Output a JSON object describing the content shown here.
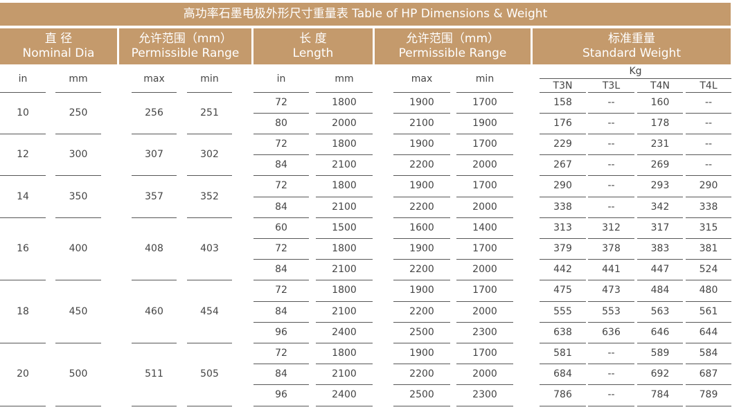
{
  "title": "高功率石墨电极外形尺寸重量表  Table of HP Dimensions & Weight",
  "headers": [
    {
      "cn": "直  径",
      "en": "Nominal Dia"
    },
    {
      "cn": "允许范围（mm）",
      "en": "Permissible Range"
    },
    {
      "cn": "长  度",
      "en": "Length"
    },
    {
      "cn": "允许范围（mm）",
      "en": "Permissible Range"
    },
    {
      "cn": "标准重量",
      "en": "Standard Weight"
    }
  ],
  "subheaders": {
    "dia": [
      "in",
      "mm"
    ],
    "range1": [
      "max",
      "min"
    ],
    "length": [
      "in",
      "mm"
    ],
    "range2": [
      "max",
      "min"
    ],
    "weight_unit": "Kg",
    "weight": [
      "T3N",
      "T3L",
      "T4N",
      "T4L"
    ]
  },
  "groups": [
    {
      "in": "10",
      "mm": "250",
      "max": "256",
      "min": "251",
      "rows": [
        {
          "len_in": "72",
          "len_mm": "1800",
          "max": "1900",
          "min": "1700",
          "t3n": "158",
          "t3l": "--",
          "t4n": "160",
          "t4l": "--"
        },
        {
          "len_in": "80",
          "len_mm": "2000",
          "max": "2100",
          "min": "1900",
          "t3n": "176",
          "t3l": "--",
          "t4n": "178",
          "t4l": "--"
        }
      ]
    },
    {
      "in": "12",
      "mm": "300",
      "max": "307",
      "min": "302",
      "rows": [
        {
          "len_in": "72",
          "len_mm": "1800",
          "max": "1900",
          "min": "1700",
          "t3n": "229",
          "t3l": "--",
          "t4n": "231",
          "t4l": "--"
        },
        {
          "len_in": "84",
          "len_mm": "2100",
          "max": "2200",
          "min": "2000",
          "t3n": "267",
          "t3l": "--",
          "t4n": "269",
          "t4l": "--"
        }
      ]
    },
    {
      "in": "14",
      "mm": "350",
      "max": "357",
      "min": "352",
      "rows": [
        {
          "len_in": "72",
          "len_mm": "1800",
          "max": "1900",
          "min": "1700",
          "t3n": "290",
          "t3l": "--",
          "t4n": "293",
          "t4l": "290"
        },
        {
          "len_in": "84",
          "len_mm": "2100",
          "max": "2200",
          "min": "2000",
          "t3n": "338",
          "t3l": "--",
          "t4n": "342",
          "t4l": "338"
        }
      ]
    },
    {
      "in": "16",
      "mm": "400",
      "max": "408",
      "min": "403",
      "rows": [
        {
          "len_in": "60",
          "len_mm": "1500",
          "max": "1600",
          "min": "1400",
          "t3n": "313",
          "t3l": "312",
          "t4n": "317",
          "t4l": "315"
        },
        {
          "len_in": "72",
          "len_mm": "1800",
          "max": "1900",
          "min": "1700",
          "t3n": "379",
          "t3l": "378",
          "t4n": "383",
          "t4l": "381"
        },
        {
          "len_in": "84",
          "len_mm": "2100",
          "max": "2200",
          "min": "2000",
          "t3n": "442",
          "t3l": "441",
          "t4n": "447",
          "t4l": "524"
        }
      ]
    },
    {
      "in": "18",
      "mm": "450",
      "max": "460",
      "min": "454",
      "rows": [
        {
          "len_in": "72",
          "len_mm": "1800",
          "max": "1900",
          "min": "1700",
          "t3n": "475",
          "t3l": "473",
          "t4n": "484",
          "t4l": "480"
        },
        {
          "len_in": "84",
          "len_mm": "2100",
          "max": "2200",
          "min": "2000",
          "t3n": "555",
          "t3l": "553",
          "t4n": "563",
          "t4l": "561"
        },
        {
          "len_in": "96",
          "len_mm": "2400",
          "max": "2500",
          "min": "2300",
          "t3n": "638",
          "t3l": "636",
          "t4n": "646",
          "t4l": "644"
        }
      ]
    },
    {
      "in": "20",
      "mm": "500",
      "max": "511",
      "min": "505",
      "rows": [
        {
          "len_in": "72",
          "len_mm": "1800",
          "max": "1900",
          "min": "1700",
          "t3n": "581",
          "t3l": "--",
          "t4n": "589",
          "t4l": "584"
        },
        {
          "len_in": "84",
          "len_mm": "2100",
          "max": "2200",
          "min": "2000",
          "t3n": "684",
          "t3l": "--",
          "t4n": "692",
          "t4l": "687"
        },
        {
          "len_in": "96",
          "len_mm": "2400",
          "max": "2500",
          "min": "2300",
          "t3n": "786",
          "t3l": "--",
          "t4n": "784",
          "t4l": "789"
        }
      ]
    }
  ],
  "colors": {
    "header_bg": "#c49a6c",
    "header_text": "#ffffff",
    "cell_text": "#444444",
    "rule": "#555555"
  }
}
